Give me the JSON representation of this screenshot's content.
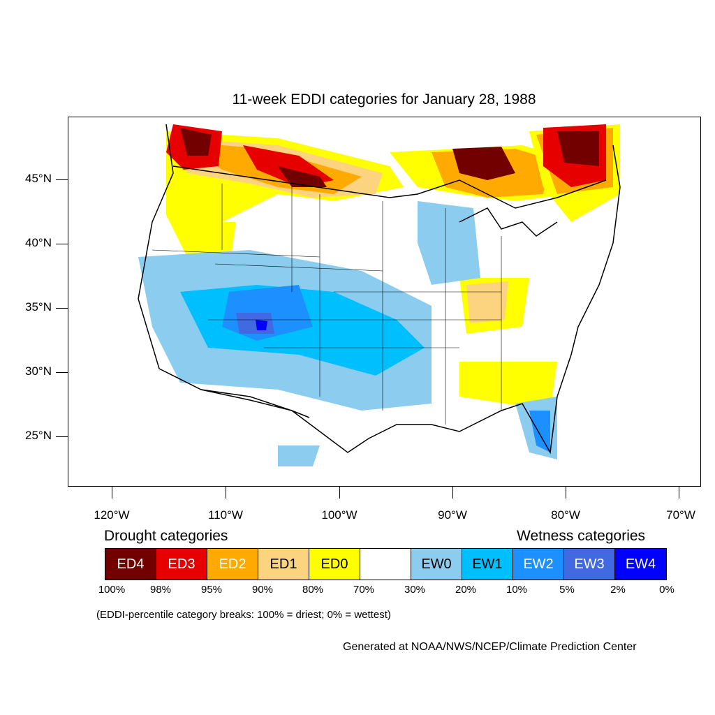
{
  "map": {
    "title": "11-week EDDI categories for January 28, 1988",
    "latitude_labels": [
      "45°N",
      "40°N",
      "35°N",
      "30°N",
      "25°N"
    ],
    "longitude_labels": [
      "120°W",
      "110°W",
      "100°W",
      "90°W",
      "80°W",
      "70°W"
    ]
  },
  "legend": {
    "drought_heading": "Drought categories",
    "wetness_heading": "Wetness categories",
    "categories": [
      {
        "label": "ED4",
        "color": "#730000",
        "text_color": "#ffffff"
      },
      {
        "label": "ED3",
        "color": "#e60000",
        "text_color": "#ffffff"
      },
      {
        "label": "ED2",
        "color": "#ffaa00",
        "text_color": "#ffffff"
      },
      {
        "label": "ED1",
        "color": "#fcd37f",
        "text_color": "#000000"
      },
      {
        "label": "ED0",
        "color": "#ffff00",
        "text_color": "#000000"
      },
      {
        "label": "",
        "color": "#ffffff",
        "text_color": "#000000"
      },
      {
        "label": "EW0",
        "color": "#8ccdef",
        "text_color": "#000000"
      },
      {
        "label": "EW1",
        "color": "#00bfff",
        "text_color": "#000000"
      },
      {
        "label": "EW2",
        "color": "#1d90ff",
        "text_color": "#ffffff"
      },
      {
        "label": "EW3",
        "color": "#4169e1",
        "text_color": "#ffffff"
      },
      {
        "label": "EW4",
        "color": "#0000ff",
        "text_color": "#ffffff"
      }
    ],
    "percentiles": [
      "100%",
      "98%",
      "95%",
      "90%",
      "80%",
      "70%",
      "30%",
      "20%",
      "10%",
      "5%",
      "2%",
      "0%"
    ],
    "note": "(EDDI-percentile category breaks: 100% = driest; 0% = wettest)"
  },
  "credit": "Generated at NOAA/NWS/NCEP/Climate Prediction Center"
}
